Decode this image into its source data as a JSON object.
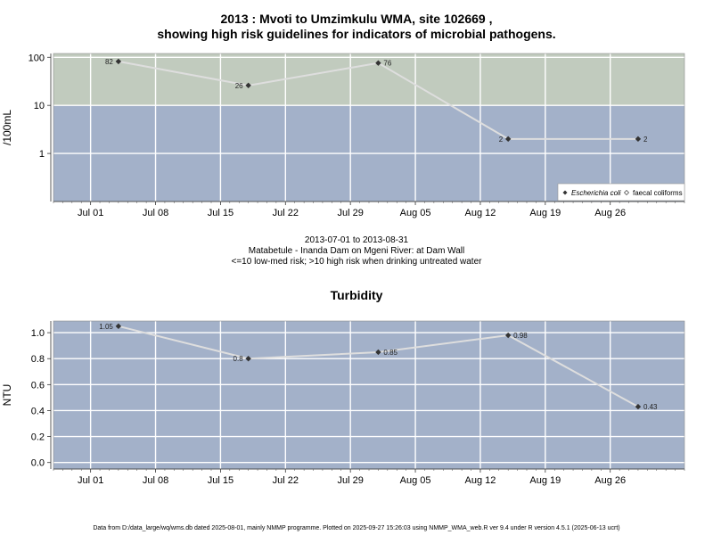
{
  "charts": {
    "micro": {
      "title_line1": "2013 : Mvoti to Umzimkulu WMA, site 102669 ,",
      "title_line2": "showing high risk guidelines for indicators of microbial pathogens.",
      "caption_line1": "2013-07-01 to 2013-08-31",
      "caption_line2": "Matabetule - Inanda Dam on Mgeni River: at Dam Wall",
      "caption_line3": "<=10 low-med risk; >10 high risk when drinking untreated water",
      "legend_ecoli": "Escherichia coli",
      "legend_faecal": "faecal coliforms"
    },
    "turbidity": {
      "title": "Turbidity"
    }
  },
  "footer": "Data from D:/data_large/wq/wms.db dated 2025-08-01, mainly NMMP programme. Plotted on 2025-09-27 15:26:03 using NMMP_WMA_web.R ver 9.4 under R version 4.5.1 (2025-06-13 ucrt)",
  "colors": {
    "background_low": "#a3b1c9",
    "background_high": "#c1cbbe",
    "grid": "#ffffff",
    "line": "#dedede",
    "point": "#333333"
  },
  "chart_data": [
    {
      "type": "line",
      "title": "2013 : Mvoti to Umzimkulu WMA, site 102669 , showing high risk guidelines for indicators of microbial pathogens.",
      "ylabel": "/100mL",
      "y_scale": "log",
      "ylim": [
        0.1,
        120
      ],
      "y_ticks": [
        1,
        10,
        100
      ],
      "x_axis": "date",
      "xlim": [
        "2013-06-27",
        "2013-09-03"
      ],
      "x_ticks": [
        {
          "date": "2013-07-01",
          "label": "Jul 01"
        },
        {
          "date": "2013-07-08",
          "label": "Jul 08"
        },
        {
          "date": "2013-07-15",
          "label": "Jul 15"
        },
        {
          "date": "2013-07-22",
          "label": "Jul 22"
        },
        {
          "date": "2013-07-29",
          "label": "Jul 29"
        },
        {
          "date": "2013-08-05",
          "label": "Aug 05"
        },
        {
          "date": "2013-08-12",
          "label": "Aug 12"
        },
        {
          "date": "2013-08-19",
          "label": "Aug 19"
        },
        {
          "date": "2013-08-26",
          "label": "Aug 26"
        }
      ],
      "threshold": 10,
      "zones": [
        {
          "from": 0.1,
          "to": 10,
          "color": "#a3b1c9"
        },
        {
          "from": 10,
          "to": 120,
          "color": "#c1cbbe"
        }
      ],
      "grid": true,
      "legend_position": "bottom-right",
      "legend": [
        "Escherichia coli",
        "faecal coliforms"
      ],
      "series": [
        {
          "name": "Escherichia coli",
          "x": [
            "2013-07-04",
            "2013-07-18",
            "2013-08-01",
            "2013-08-15",
            "2013-08-29"
          ],
          "y": [
            82,
            26,
            76,
            2,
            2
          ],
          "labels": [
            "82",
            "26",
            "76",
            "2",
            "2"
          ],
          "label_side": [
            "left",
            "left",
            "right",
            "left",
            "right"
          ]
        }
      ]
    },
    {
      "type": "line",
      "title": "Turbidity",
      "ylabel": "NTU",
      "ylim": [
        -0.05,
        1.09
      ],
      "y_ticks": [
        0.0,
        0.2,
        0.4,
        0.6,
        0.8,
        1.0
      ],
      "y_tick_labels": [
        "0.0",
        "0.2",
        "0.4",
        "0.6",
        "0.8",
        "1.0"
      ],
      "x_axis": "date",
      "xlim": [
        "2013-06-27",
        "2013-09-03"
      ],
      "x_ticks": [
        {
          "date": "2013-07-01",
          "label": "Jul 01"
        },
        {
          "date": "2013-07-08",
          "label": "Jul 08"
        },
        {
          "date": "2013-07-15",
          "label": "Jul 15"
        },
        {
          "date": "2013-07-22",
          "label": "Jul 22"
        },
        {
          "date": "2013-07-29",
          "label": "Jul 29"
        },
        {
          "date": "2013-08-05",
          "label": "Aug 05"
        },
        {
          "date": "2013-08-12",
          "label": "Aug 12"
        },
        {
          "date": "2013-08-19",
          "label": "Aug 19"
        },
        {
          "date": "2013-08-26",
          "label": "Aug 26"
        }
      ],
      "grid": true,
      "series": [
        {
          "name": "",
          "x": [
            "2013-07-04",
            "2013-07-18",
            "2013-08-01",
            "2013-08-15",
            "2013-08-29"
          ],
          "y": [
            1.05,
            0.8,
            0.85,
            0.98,
            0.43
          ],
          "labels": [
            "1.05",
            "0.8",
            "0.85",
            "0.98",
            "0.43"
          ],
          "label_side": [
            "left",
            "left",
            "right",
            "right",
            "right"
          ]
        }
      ]
    }
  ]
}
